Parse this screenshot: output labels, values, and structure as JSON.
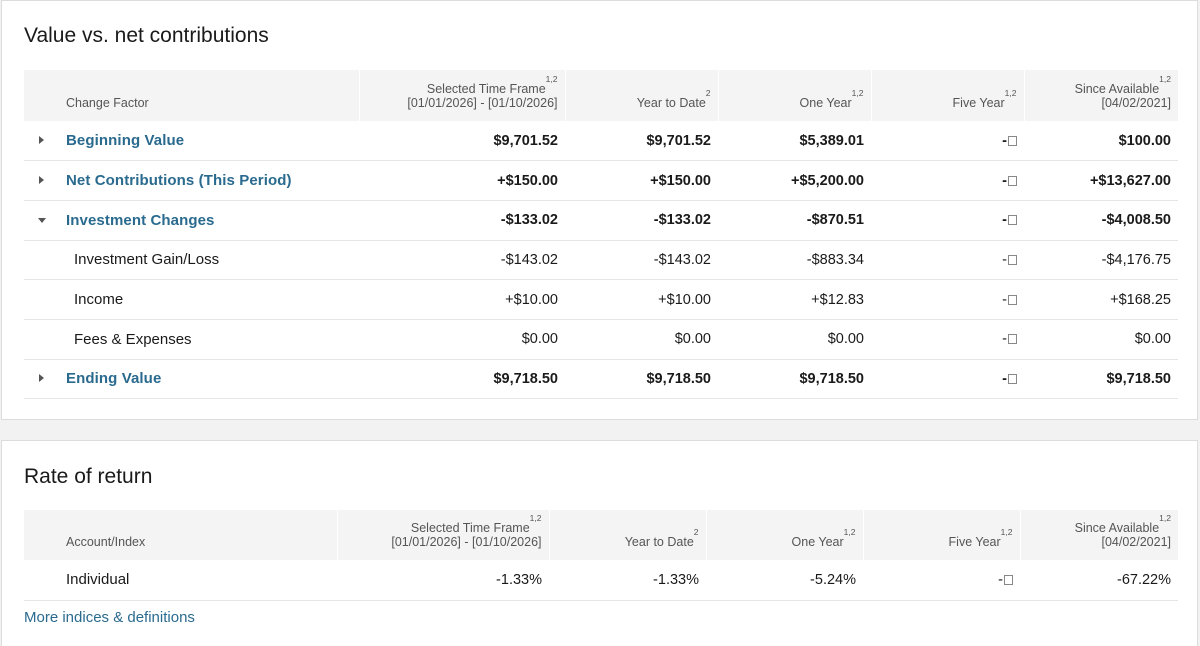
{
  "value_section": {
    "title": "Value vs. net contributions",
    "columns": [
      {
        "label": "Change Factor",
        "sup": "",
        "sub": ""
      },
      {
        "label": "Selected Time Frame",
        "sup": "1,2",
        "sub": "[01/01/2026] - [01/10/2026]"
      },
      {
        "label": "Year to Date",
        "sup": "2",
        "sub": ""
      },
      {
        "label": "One Year",
        "sup": "1,2",
        "sub": ""
      },
      {
        "label": "Five Year",
        "sup": "1,2",
        "sub": ""
      },
      {
        "label": "Since Available",
        "sup": "1,2",
        "sub": "[04/02/2021]"
      }
    ],
    "rows": [
      {
        "label": "Beginning Value",
        "type": "group",
        "caret": "right",
        "values": [
          "$9,701.52",
          "$9,701.52",
          "$5,389.01",
          "-",
          "$100.00"
        ]
      },
      {
        "label": "Net Contributions (This Period)",
        "type": "group",
        "caret": "right",
        "values": [
          "+$150.00",
          "+$150.00",
          "+$5,200.00",
          "-",
          "+$13,627.00"
        ]
      },
      {
        "label": "Investment Changes",
        "type": "group",
        "caret": "down",
        "values": [
          "-$133.02",
          "-$133.02",
          "-$870.51",
          "-",
          "-$4,008.50"
        ]
      },
      {
        "label": "Investment Gain/Loss",
        "type": "sub",
        "caret": "",
        "values": [
          "-$143.02",
          "-$143.02",
          "-$883.34",
          "-",
          "-$4,176.75"
        ]
      },
      {
        "label": "Income",
        "type": "sub",
        "caret": "",
        "values": [
          "+$10.00",
          "+$10.00",
          "+$12.83",
          "-",
          "+$168.25"
        ]
      },
      {
        "label": "Fees & Expenses",
        "type": "sub",
        "caret": "",
        "values": [
          "$0.00",
          "$0.00",
          "$0.00",
          "-",
          "$0.00"
        ]
      },
      {
        "label": "Ending Value",
        "type": "group",
        "caret": "right",
        "values": [
          "$9,718.50",
          "$9,718.50",
          "$9,718.50",
          "-",
          "$9,718.50"
        ]
      }
    ]
  },
  "return_section": {
    "title": "Rate of return",
    "columns": [
      {
        "label": "Account/Index",
        "sup": "",
        "sub": ""
      },
      {
        "label": "Selected Time Frame",
        "sup": "1,2",
        "sub": "[01/01/2026] - [01/10/2026]"
      },
      {
        "label": "Year to Date",
        "sup": "2",
        "sub": ""
      },
      {
        "label": "One Year",
        "sup": "1,2",
        "sub": ""
      },
      {
        "label": "Five Year",
        "sup": "1,2",
        "sub": ""
      },
      {
        "label": "Since Available",
        "sup": "1,2",
        "sub": "[04/02/2021]"
      }
    ],
    "rows": [
      {
        "label": "Individual",
        "values": [
          "-1.33%",
          "-1.33%",
          "-5.24%",
          "-",
          "-67.22%"
        ]
      }
    ],
    "more_link": "More indices & definitions"
  },
  "colors": {
    "link": "#2a6a8f",
    "header_bg": "#f4f4f4"
  }
}
